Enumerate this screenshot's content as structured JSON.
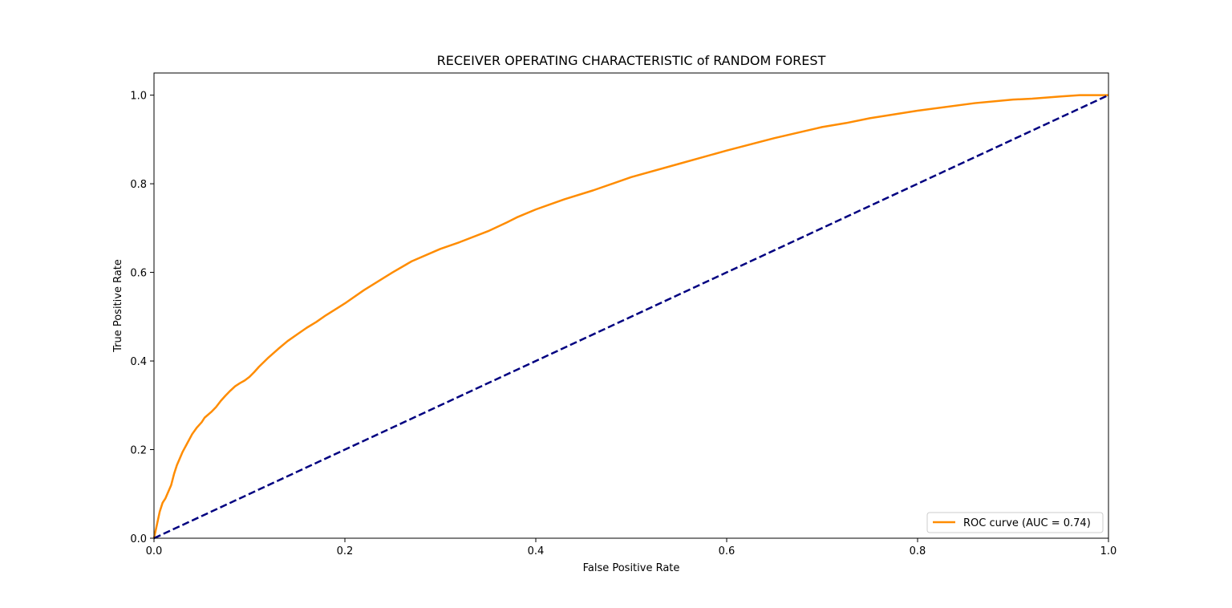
{
  "chart_data": {
    "type": "line",
    "title": "RECEIVER OPERATING CHARACTERISTIC of RANDOM FOREST",
    "xlabel": "False Positive Rate",
    "ylabel": "True Positive Rate",
    "xlim": [
      0.0,
      1.0
    ],
    "ylim": [
      0.0,
      1.05
    ],
    "x_ticks": [
      0.0,
      0.2,
      0.4,
      0.6,
      0.8,
      1.0
    ],
    "x_tick_labels": [
      "0.0",
      "0.2",
      "0.4",
      "0.6",
      "0.8",
      "1.0"
    ],
    "y_ticks": [
      0.0,
      0.2,
      0.4,
      0.6,
      0.8,
      1.0
    ],
    "y_tick_labels": [
      "0.0",
      "0.2",
      "0.4",
      "0.6",
      "0.8",
      "1.0"
    ],
    "grid": false,
    "legend_position": "lower right",
    "series": [
      {
        "name": "ROC curve (AUC = 0.74)",
        "color": "#ff8c00",
        "line_style": "solid",
        "x": [
          0.0,
          0.003,
          0.006,
          0.009,
          0.012,
          0.015,
          0.018,
          0.021,
          0.024,
          0.027,
          0.03,
          0.035,
          0.04,
          0.045,
          0.05,
          0.053,
          0.06,
          0.065,
          0.07,
          0.075,
          0.08,
          0.085,
          0.09,
          0.095,
          0.1,
          0.105,
          0.11,
          0.12,
          0.13,
          0.14,
          0.15,
          0.16,
          0.17,
          0.18,
          0.2,
          0.22,
          0.25,
          0.27,
          0.3,
          0.32,
          0.35,
          0.37,
          0.38,
          0.4,
          0.43,
          0.46,
          0.5,
          0.55,
          0.6,
          0.65,
          0.7,
          0.725,
          0.75,
          0.8,
          0.86,
          0.9,
          0.92,
          0.95,
          0.97,
          1.0
        ],
        "y": [
          0.0,
          0.03,
          0.06,
          0.08,
          0.09,
          0.105,
          0.12,
          0.145,
          0.165,
          0.18,
          0.195,
          0.215,
          0.235,
          0.25,
          0.262,
          0.272,
          0.285,
          0.296,
          0.31,
          0.322,
          0.333,
          0.343,
          0.35,
          0.356,
          0.364,
          0.375,
          0.387,
          0.408,
          0.427,
          0.445,
          0.46,
          0.475,
          0.488,
          0.503,
          0.53,
          0.56,
          0.6,
          0.625,
          0.653,
          0.668,
          0.693,
          0.713,
          0.724,
          0.742,
          0.765,
          0.785,
          0.815,
          0.845,
          0.875,
          0.903,
          0.928,
          0.937,
          0.948,
          0.965,
          0.982,
          0.99,
          0.992,
          0.997,
          1.0,
          1.0
        ]
      },
      {
        "name": "",
        "color": "#000080",
        "line_style": "dashed",
        "x": [
          0.0,
          1.0
        ],
        "y": [
          0.0,
          1.0
        ]
      }
    ]
  }
}
